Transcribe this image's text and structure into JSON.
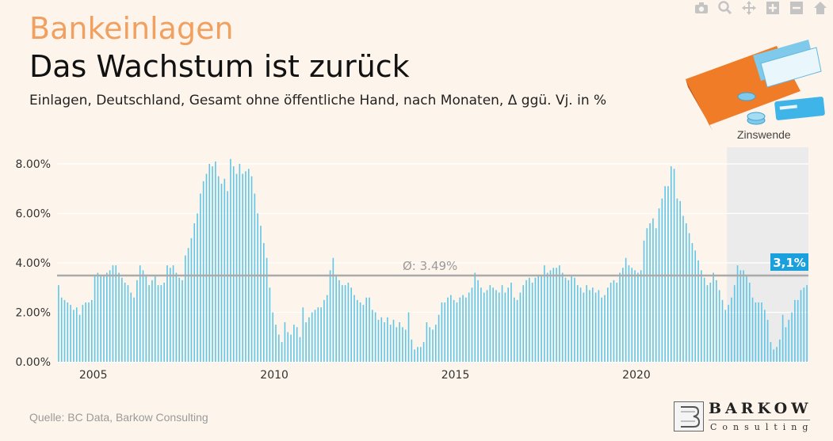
{
  "supertitle": "Bankeinlagen",
  "title": "Das Wachstum ist zurück",
  "subtitle": "Einlagen, Deutschland, Gesamt ohne öffentliche Hand, nach Monaten, Δ ggü. Vj. in %",
  "source": "Quelle: BC Data, Barkow Consulting",
  "logo": {
    "name": "BARKOW",
    "sub": "Consulting"
  },
  "toolbar": [
    "camera-icon",
    "zoom-icon",
    "pan-icon",
    "zoom-in-icon",
    "zoom-out-icon",
    "home-icon"
  ],
  "colors": {
    "bar": "#5ec6e8",
    "avg_line": "#aaaaaa",
    "badge": "#1aa0dc",
    "shade": "#ebebeb",
    "title_orange": "#f0a060"
  },
  "chart_data": {
    "type": "bar",
    "x_start": "2004-01",
    "frequency": "monthly",
    "x_ticks": [
      "2005",
      "2010",
      "2015",
      "2020"
    ],
    "y_ticks": [
      "0.00%",
      "2.00%",
      "4.00%",
      "6.00%",
      "8.00%"
    ],
    "ylim": [
      0,
      8.5
    ],
    "xlim": [
      "2004-01",
      "2024-09"
    ],
    "grid": true,
    "average": {
      "value": 3.49,
      "label": "Ø: 3.49%"
    },
    "highlight": {
      "from": "2022-07",
      "to": "2024-09",
      "label": "Zinswende"
    },
    "last_label": "3,1%",
    "values": [
      3.1,
      2.6,
      2.5,
      2.4,
      2.3,
      2.1,
      2.2,
      1.9,
      2.3,
      2.4,
      2.4,
      2.5,
      3.5,
      3.6,
      3.5,
      3.5,
      3.6,
      3.7,
      3.9,
      3.9,
      3.6,
      3.4,
      3.2,
      3.1,
      2.8,
      2.6,
      3.3,
      3.9,
      3.7,
      3.5,
      3.1,
      3.3,
      3.5,
      3.1,
      3.1,
      3.2,
      3.9,
      3.8,
      3.9,
      3.6,
      3.4,
      3.3,
      4.3,
      4.6,
      5.0,
      5.6,
      6.0,
      6.8,
      7.3,
      7.6,
      8.0,
      7.9,
      8.1,
      7.5,
      7.2,
      7.4,
      6.9,
      8.2,
      7.9,
      7.6,
      8.0,
      7.6,
      7.7,
      7.8,
      7.5,
      6.8,
      6.0,
      5.5,
      4.8,
      4.2,
      3.0,
      2.0,
      1.5,
      1.1,
      0.8,
      1.6,
      1.2,
      1.1,
      1.5,
      1.4,
      1.0,
      2.2,
      1.6,
      1.8,
      2.0,
      2.1,
      2.2,
      2.2,
      2.5,
      2.7,
      3.7,
      4.2,
      3.5,
      3.3,
      3.1,
      3.1,
      3.2,
      3.0,
      2.7,
      2.5,
      2.4,
      2.3,
      2.6,
      2.6,
      2.1,
      2.0,
      1.7,
      1.8,
      1.6,
      1.8,
      1.5,
      1.7,
      1.4,
      1.6,
      1.4,
      1.3,
      2.0,
      0.9,
      0.5,
      0.6,
      0.6,
      0.8,
      1.6,
      1.4,
      1.3,
      1.5,
      1.9,
      2.4,
      2.4,
      2.6,
      2.7,
      2.5,
      2.4,
      2.6,
      2.7,
      2.6,
      2.8,
      3.0,
      3.6,
      3.3,
      3.0,
      2.8,
      2.9,
      3.1,
      3.0,
      2.9,
      2.8,
      3.1,
      2.8,
      3.0,
      3.2,
      2.6,
      2.5,
      2.8,
      3.1,
      3.3,
      3.4,
      3.2,
      3.4,
      3.5,
      3.5,
      3.9,
      3.6,
      3.7,
      3.8,
      3.8,
      3.9,
      3.6,
      3.4,
      3.3,
      3.5,
      3.4,
      3.1,
      3.0,
      2.8,
      3.1,
      2.9,
      3.0,
      2.8,
      2.9,
      2.6,
      2.7,
      3.0,
      3.2,
      3.3,
      3.2,
      3.6,
      3.8,
      4.2,
      3.9,
      3.8,
      3.7,
      3.6,
      3.7,
      4.9,
      5.4,
      5.6,
      5.8,
      5.4,
      6.2,
      6.6,
      7.1,
      7.1,
      7.9,
      7.8,
      6.6,
      6.5,
      5.9,
      5.6,
      5.2,
      4.8,
      4.5,
      4.1,
      3.7,
      3.4,
      3.1,
      3.2,
      3.6,
      3.3,
      2.9,
      2.5,
      2.1,
      2.3,
      2.6,
      3.1,
      3.9,
      3.7,
      3.7,
      3.5,
      3.2,
      2.6,
      2.4,
      2.4,
      2.4,
      2.1,
      1.7,
      0.8,
      0.5,
      0.6,
      0.9,
      1.9,
      1.4,
      1.7,
      2.0,
      2.5,
      2.5,
      2.9,
      3.0,
      3.1
    ]
  }
}
